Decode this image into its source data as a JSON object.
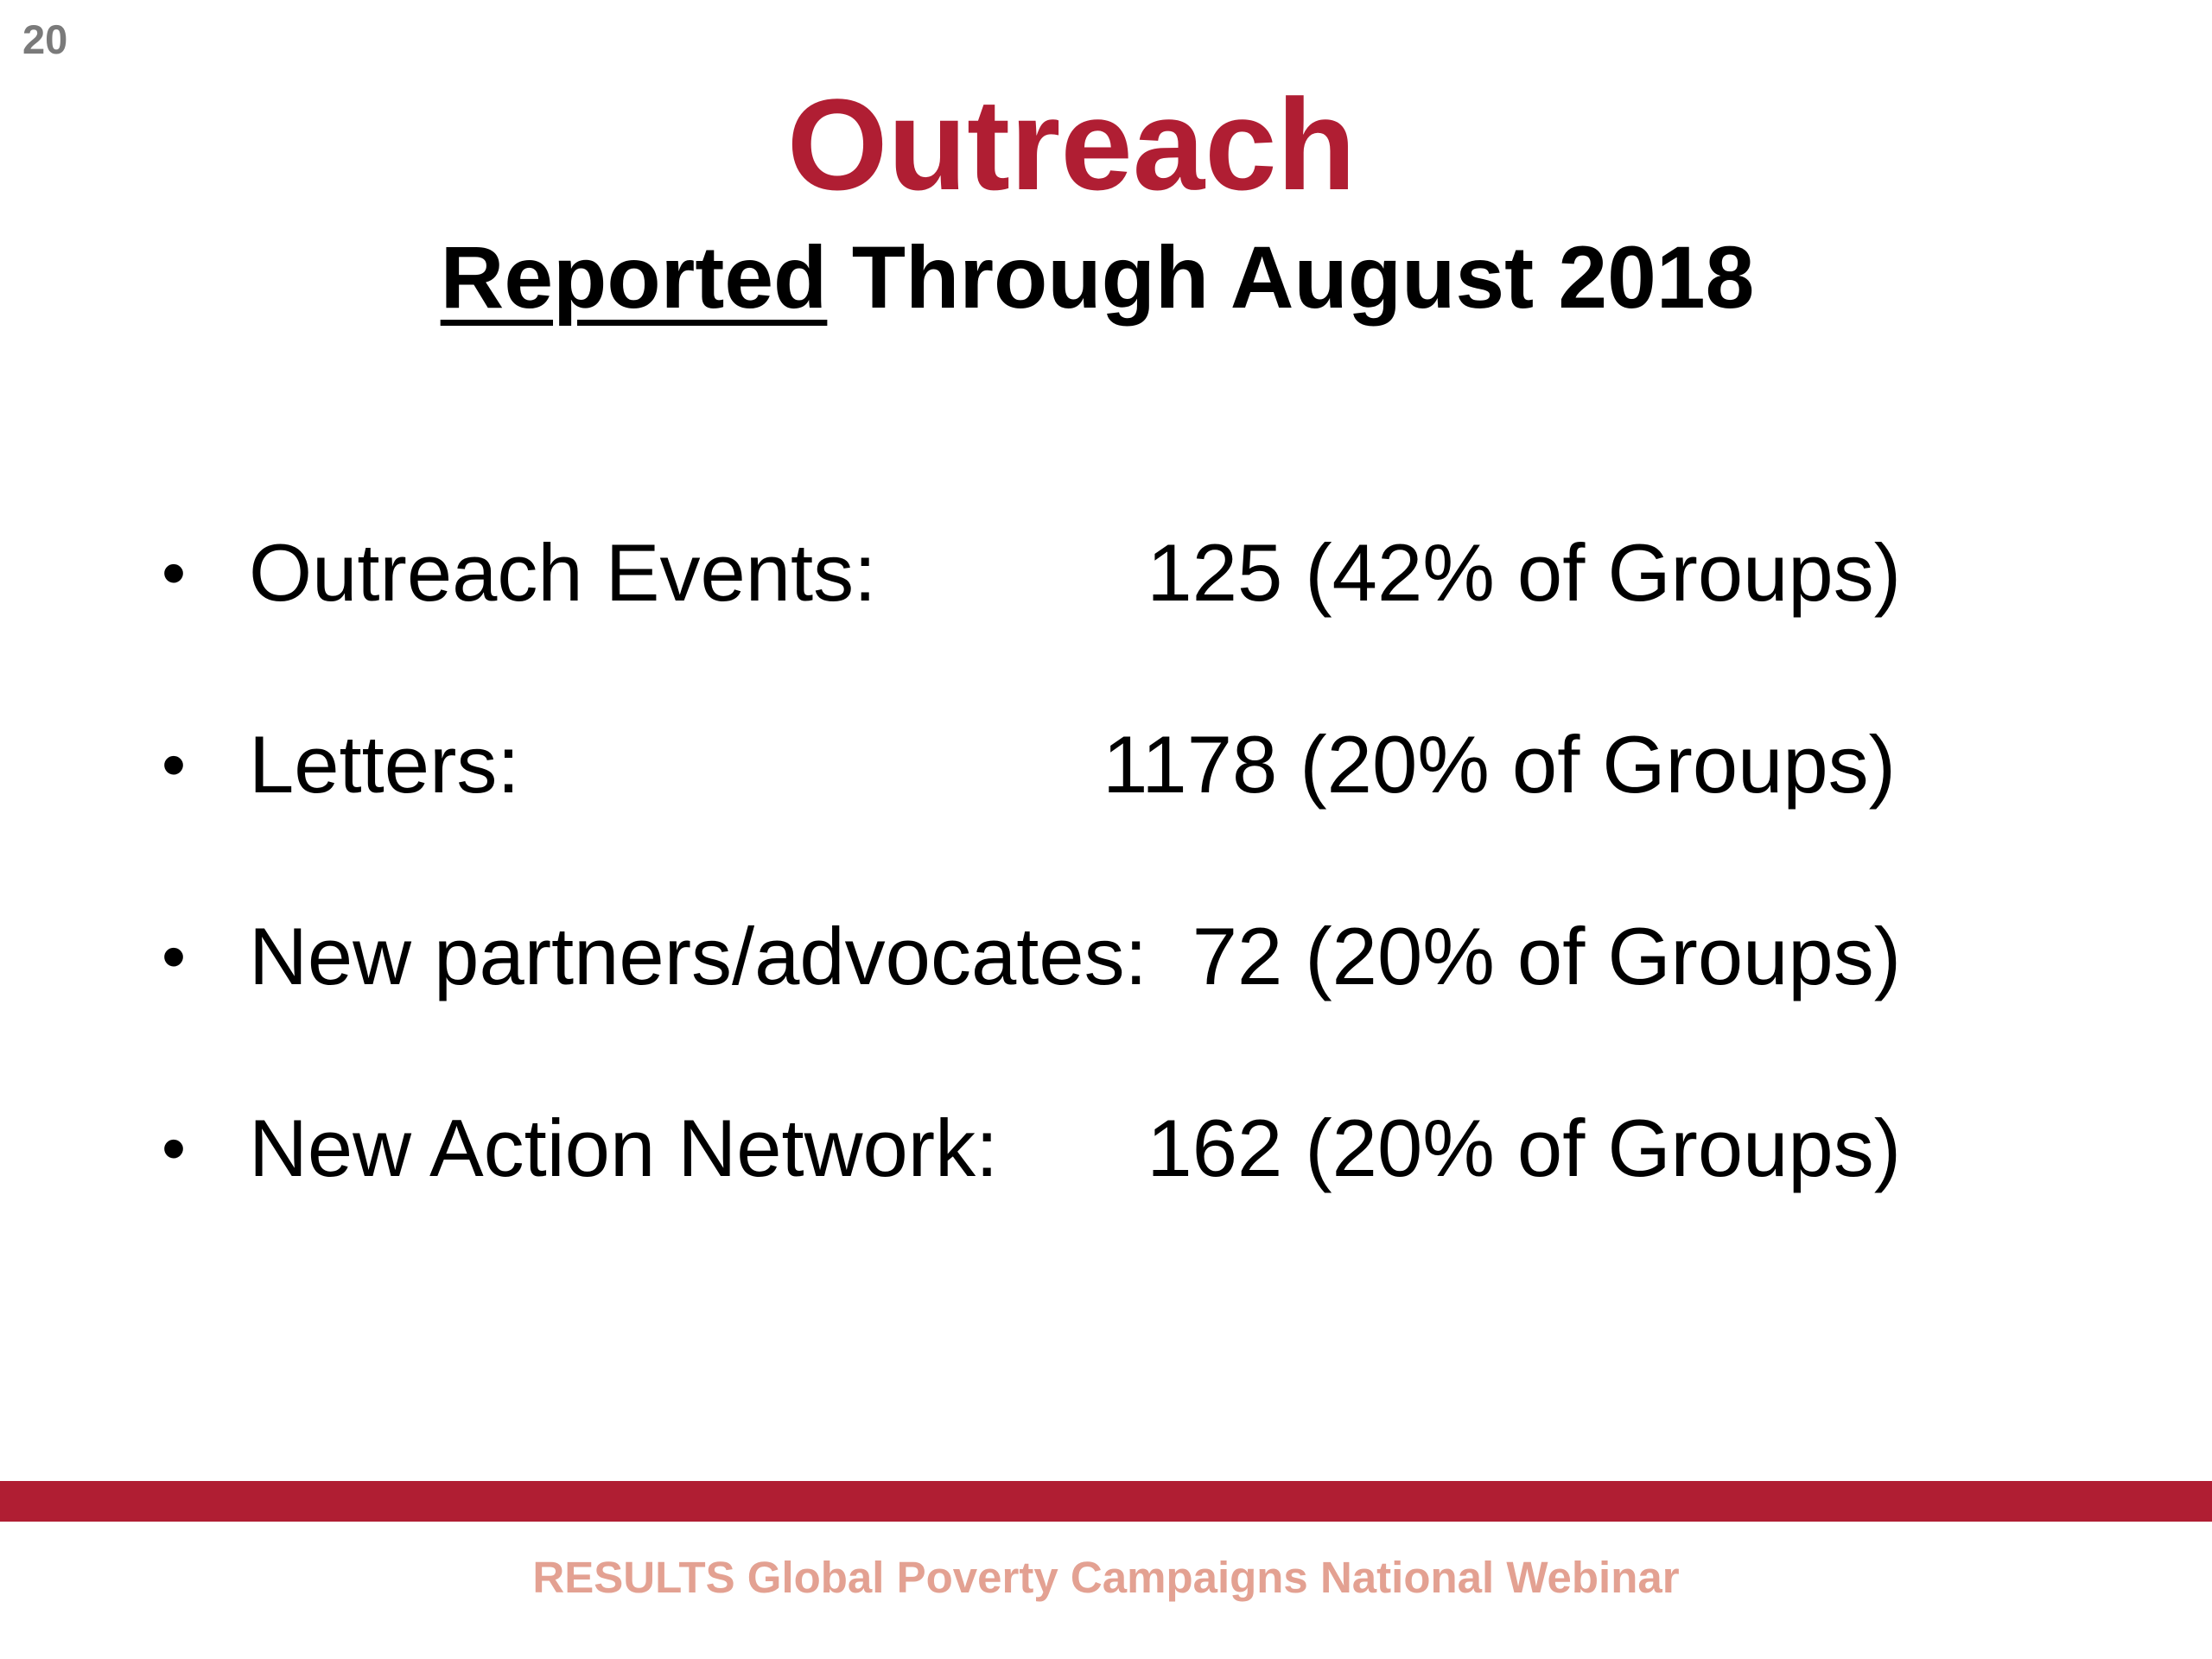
{
  "slide": {
    "page_number": "20",
    "title": "Outreach",
    "subtitle": {
      "underlined_part": "Reported",
      "rest": " Through August 2018"
    },
    "bullet_glyph": "•",
    "stats": [
      {
        "label": "Outreach Events:",
        "value": "125 (42% of Groups)"
      },
      {
        "label": "Letters:",
        "value": "1178 (20% of Groups)"
      },
      {
        "label": "New partners/advocates:",
        "value": "72 (20% of Groups)"
      },
      {
        "label": "New Action Network:",
        "value": "162 (20% of Groups)"
      }
    ],
    "footer_text": "RESULTS Global Poverty Campaigns National Webinar"
  },
  "colors": {
    "title": "#b01e33",
    "footer_bar": "#b01e33",
    "footer_text": "#e3a192",
    "page_number": "#7a7a7a",
    "body_text": "#000000"
  }
}
